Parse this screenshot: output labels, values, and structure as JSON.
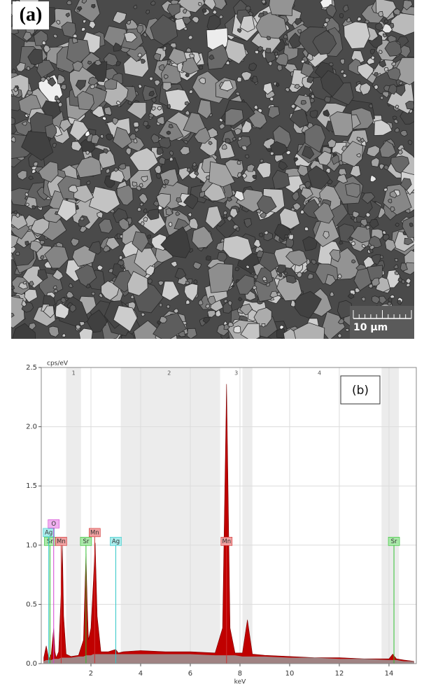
{
  "image_panel": {
    "label": "(a)",
    "scale_bar": "10 µm"
  },
  "chart_data": {
    "type": "area",
    "annotation": "(b)",
    "y_label": "cps/eV",
    "x_label": "keV",
    "xlim": [
      0,
      15.1
    ],
    "xticks": [
      2,
      4,
      6,
      8,
      10,
      12,
      14
    ],
    "ylim": [
      0,
      2.5
    ],
    "yticks": [
      {
        "value": 0,
        "label": "0.0"
      },
      {
        "value": 0.5,
        "label": "0.5"
      },
      {
        "value": 1,
        "label": "1.0"
      },
      {
        "value": 1.5,
        "label": "1.5"
      },
      {
        "value": 2,
        "label": "2.0"
      },
      {
        "value": 2.5,
        "label": "2.5"
      }
    ],
    "grid": true,
    "regions": [
      {
        "label": "1",
        "x": 1.3,
        "range": [
          1.0,
          1.6
        ]
      },
      {
        "label": "2",
        "x": 5.15,
        "range": [
          3.2,
          7.2
        ]
      },
      {
        "label": "3",
        "x": 7.85,
        "range": [
          8.1,
          8.5
        ]
      },
      {
        "label": "4",
        "x": 11.2,
        "range": [
          13.7,
          14.4
        ]
      }
    ],
    "x": [
      0.1,
      0.2,
      0.3,
      0.4,
      0.5,
      0.55,
      0.6,
      0.7,
      0.8,
      0.85,
      0.9,
      1.0,
      1.2,
      1.5,
      1.7,
      1.8,
      1.85,
      1.9,
      2.0,
      2.1,
      2.17,
      2.25,
      2.4,
      2.7,
      3.0,
      3.1,
      3.3,
      4,
      5,
      6,
      7,
      7.3,
      7.46,
      7.6,
      7.8,
      8.1,
      8.3,
      8.5,
      9,
      10,
      11,
      12,
      13,
      14,
      14.15,
      14.3,
      14.6,
      15
    ],
    "series": [
      {
        "color": "#c00000",
        "values": [
          0.05,
          0.15,
          0.04,
          0.08,
          0.3,
          0.1,
          0.05,
          0.1,
          0.6,
          1.0,
          0.4,
          0.08,
          0.06,
          0.07,
          0.2,
          0.93,
          0.5,
          0.2,
          0.3,
          0.7,
          1.02,
          0.4,
          0.1,
          0.1,
          0.12,
          0.09,
          0.1,
          0.11,
          0.1,
          0.1,
          0.09,
          0.3,
          2.36,
          0.3,
          0.09,
          0.09,
          0.37,
          0.08,
          0.07,
          0.06,
          0.05,
          0.05,
          0.04,
          0.04,
          0.08,
          0.04,
          0.03,
          0.02
        ]
      },
      {
        "color": "#9a9a9a",
        "values": [
          0.02,
          0.03,
          0.03,
          0.03,
          0.04,
          0.04,
          0.04,
          0.04,
          0.05,
          0.05,
          0.05,
          0.05,
          0.05,
          0.06,
          0.06,
          0.07,
          0.07,
          0.07,
          0.07,
          0.08,
          0.08,
          0.08,
          0.08,
          0.08,
          0.08,
          0.08,
          0.08,
          0.08,
          0.08,
          0.08,
          0.07,
          0.07,
          0.07,
          0.07,
          0.07,
          0.06,
          0.06,
          0.06,
          0.06,
          0.05,
          0.05,
          0.04,
          0.04,
          0.03,
          0.03,
          0.03,
          0.02,
          0.02
        ]
      }
    ],
    "markers": [
      {
        "label": "Sr",
        "x": 0.35,
        "color": "#30c030",
        "fill": "#a8e8a8"
      },
      {
        "label": "Ag",
        "x": 0.3,
        "color": "#30c8c8",
        "fill": "#a8ecec"
      },
      {
        "label": "O",
        "x": 0.5,
        "color": "#d040d0",
        "fill": "#f0b0f0"
      },
      {
        "label": "Mn",
        "x": 0.8,
        "color": "#d03030",
        "fill": "#f0a0a0"
      },
      {
        "label": "Sr",
        "x": 1.8,
        "color": "#30c030",
        "fill": "#a8e8a8"
      },
      {
        "label": "Mn",
        "x": 2.15,
        "color": "#d03030",
        "fill": "#f0a0a0"
      },
      {
        "label": "Ag",
        "x": 3.0,
        "color": "#30c8c8",
        "fill": "#a8ecec"
      },
      {
        "label": "Mn",
        "x": 7.46,
        "color": "#d03030",
        "fill": "#f0a0a0"
      },
      {
        "label": "Sr",
        "x": 14.2,
        "color": "#30c030",
        "fill": "#a8e8a8"
      }
    ]
  }
}
